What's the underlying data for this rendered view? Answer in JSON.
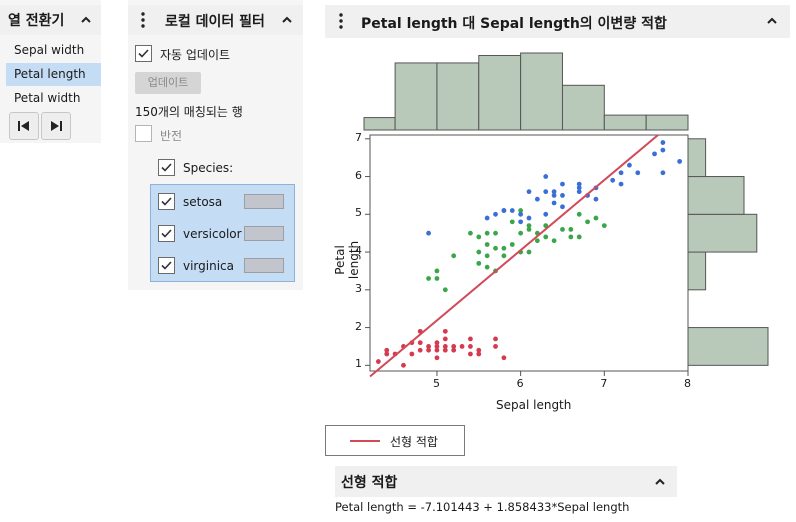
{
  "column_switcher": {
    "title": "열 전환기",
    "items": [
      "Sepal width",
      "Petal length",
      "Petal width"
    ],
    "selected_index": 1
  },
  "local_filter": {
    "title": "로컬 데이터 필터",
    "auto_update_label": "자동 업데이트",
    "auto_update_checked": true,
    "update_button": "업데이트",
    "matching_rows": "150개의 매칭되는 행",
    "invert_label": "반전",
    "invert_checked": false,
    "species_label": "Species:",
    "species_checked": true,
    "species": [
      {
        "name": "setosa",
        "checked": true
      },
      {
        "name": "versicolor",
        "checked": true
      },
      {
        "name": "virginica",
        "checked": true
      }
    ]
  },
  "report": {
    "title": "Petal length 대 Sepal length의 이변량 적합",
    "legend_label": "선형 적합",
    "linear_fit_title": "선형 적합",
    "equation": "Petal length = -7.101443 + 1.858433*Sepal length"
  },
  "colors": {
    "setosa": "#d63a4f",
    "versicolor": "#3aa64a",
    "virginica": "#3a6fd6",
    "fit_line": "#d14a5a",
    "histogram_fill": "#b8c9b9",
    "histogram_stroke": "#555555",
    "selected_row": "#c5dcf5"
  },
  "chart_data": {
    "type": "scatter",
    "title": "",
    "xlabel": "Sepal length",
    "ylabel": "Petal length",
    "xlim": [
      4.2,
      8.0
    ],
    "ylim": [
      0.85,
      7.1
    ],
    "x_ticks": [
      5,
      6,
      7,
      8
    ],
    "y_ticks": [
      1,
      2,
      3,
      4,
      5,
      6,
      7
    ],
    "grid": false,
    "fit": {
      "intercept": -7.101443,
      "slope": 1.858433,
      "name": "선형 적합"
    },
    "histogram_x": {
      "bin_edges": [
        4.0,
        4.5,
        5.0,
        5.5,
        6.0,
        6.5,
        7.0,
        7.5,
        8.0
      ],
      "counts": [
        5,
        27,
        27,
        30,
        31,
        18,
        6,
        6
      ]
    },
    "histogram_y": {
      "bin_edges": [
        1,
        2,
        3,
        4,
        5,
        6,
        7
      ],
      "counts": [
        50,
        0,
        11,
        43,
        35,
        11
      ]
    },
    "series": [
      {
        "name": "setosa",
        "x": [
          4.3,
          4.4,
          4.4,
          4.5,
          4.6,
          4.6,
          4.7,
          4.7,
          4.8,
          4.8,
          4.8,
          4.9,
          4.9,
          5.0,
          5.0,
          5.0,
          5.0,
          5.1,
          5.1,
          5.1,
          5.1,
          5.2,
          5.2,
          5.3,
          5.4,
          5.4,
          5.4,
          5.5,
          5.5,
          5.7,
          5.7,
          5.8
        ],
        "y": [
          1.1,
          1.3,
          1.4,
          1.3,
          1.0,
          1.5,
          1.3,
          1.6,
          1.4,
          1.6,
          1.9,
          1.4,
          1.5,
          1.2,
          1.4,
          1.5,
          1.6,
          1.4,
          1.5,
          1.7,
          1.9,
          1.4,
          1.5,
          1.5,
          1.3,
          1.5,
          1.7,
          1.3,
          1.4,
          1.5,
          1.7,
          1.2
        ]
      },
      {
        "name": "versicolor",
        "x": [
          4.9,
          5.0,
          5.0,
          5.1,
          5.2,
          5.4,
          5.5,
          5.5,
          5.5,
          5.6,
          5.6,
          5.6,
          5.6,
          5.7,
          5.7,
          5.7,
          5.8,
          5.8,
          5.9,
          5.9,
          6.0,
          6.0,
          6.0,
          6.1,
          6.1,
          6.1,
          6.2,
          6.2,
          6.3,
          6.3,
          6.4,
          6.5,
          6.6,
          6.6,
          6.7,
          6.7,
          6.8,
          6.9,
          7.0
        ],
        "y": [
          3.3,
          3.5,
          3.3,
          3.0,
          3.9,
          4.5,
          3.7,
          4.0,
          4.4,
          3.6,
          3.9,
          4.2,
          4.5,
          3.5,
          4.1,
          4.5,
          3.9,
          4.1,
          4.2,
          4.8,
          4.0,
          4.5,
          5.1,
          4.0,
          4.6,
          4.7,
          4.3,
          4.5,
          4.4,
          4.7,
          4.3,
          4.6,
          4.4,
          4.6,
          4.4,
          5.0,
          4.8,
          4.9,
          4.7
        ]
      },
      {
        "name": "virginica",
        "x": [
          4.9,
          5.6,
          5.7,
          5.8,
          5.8,
          5.9,
          6.0,
          6.0,
          6.1,
          6.1,
          6.2,
          6.3,
          6.3,
          6.3,
          6.4,
          6.4,
          6.4,
          6.5,
          6.5,
          6.5,
          6.7,
          6.7,
          6.7,
          6.8,
          6.9,
          6.9,
          7.1,
          7.2,
          7.2,
          7.3,
          7.4,
          7.6,
          7.7,
          7.7,
          7.7,
          7.9
        ],
        "y": [
          4.5,
          4.9,
          5.0,
          5.1,
          5.1,
          5.1,
          4.8,
          5.0,
          4.9,
          5.6,
          5.4,
          5.0,
          5.6,
          6.0,
          5.3,
          5.6,
          5.5,
          5.5,
          5.8,
          5.2,
          5.6,
          5.7,
          5.8,
          5.5,
          5.7,
          5.4,
          5.9,
          5.8,
          6.1,
          6.3,
          6.1,
          6.6,
          6.7,
          6.9,
          6.1,
          6.4
        ]
      }
    ]
  }
}
